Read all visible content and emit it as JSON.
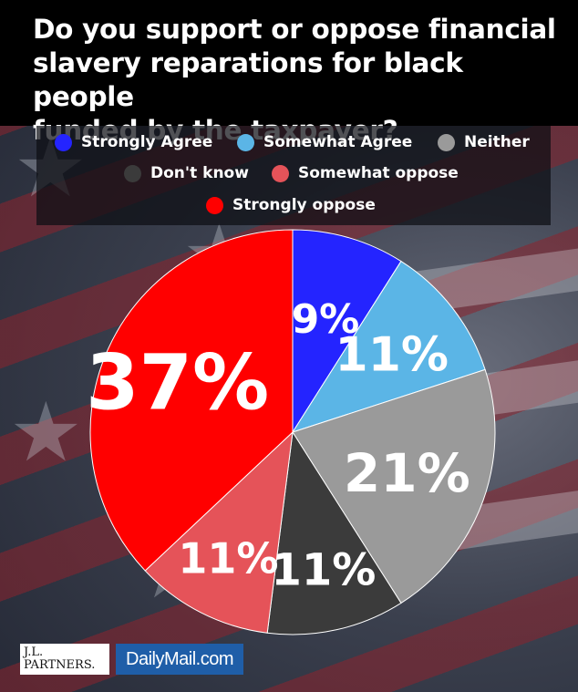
{
  "header": {
    "title_lines": [
      "Do you support or oppose financial",
      "slavery reparations for black people",
      "funded by the taxpayer?"
    ]
  },
  "colors": {
    "strongly_agree": "#2424ff",
    "somewhat_agree": "#5bb5e6",
    "neither": "#9a9a9a",
    "dont_know": "#3b3b3b",
    "somewhat_oppose": "#e55359",
    "strongly_oppose": "#ff0000"
  },
  "chart_data": {
    "type": "pie",
    "title": "Do you support or oppose financial slavery reparations for black people funded by the taxpayer?",
    "legend_position": "top",
    "slices": [
      {
        "label": "Strongly Agree",
        "value": 9,
        "display": "9%",
        "color": "#2424ff"
      },
      {
        "label": "Somewhat Agree",
        "value": 11,
        "display": "11%",
        "color": "#5bb5e6"
      },
      {
        "label": "Neither",
        "value": 21,
        "display": "21%",
        "color": "#9a9a9a"
      },
      {
        "label": "Don't know",
        "value": 11,
        "display": "11%",
        "color": "#3b3b3b"
      },
      {
        "label": "Somewhat oppose",
        "value": 11,
        "display": "11%",
        "color": "#e55359"
      },
      {
        "label": "Strongly oppose",
        "value": 37,
        "display": "37%",
        "color": "#ff0000"
      }
    ]
  },
  "footer": {
    "logo_left_lines": [
      "J.L.",
      "PARTNERS."
    ],
    "logo_right": "DailyMail.com"
  }
}
